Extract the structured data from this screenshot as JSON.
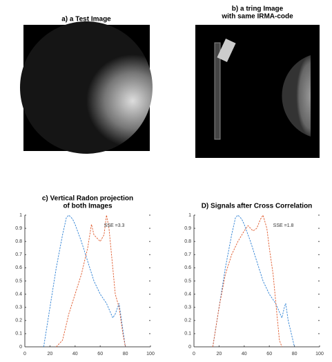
{
  "images": [
    {
      "title": [
        "a) a Test Image"
      ]
    },
    {
      "title": [
        "b) a tring Image",
        "with same IRMA-code"
      ]
    }
  ],
  "chart_data": [
    {
      "type": "line",
      "title": [
        "c) Vertical Radon projection",
        "of both Images"
      ],
      "annotation": "SSE =3.3",
      "annotation_at": [
        63,
        0.92
      ],
      "xlim": [
        0,
        100
      ],
      "xticks": [
        0,
        20,
        40,
        60,
        80,
        100
      ],
      "ylim": [
        0,
        1
      ],
      "yticks": [
        0,
        0.1,
        0.2,
        0.3,
        0.4,
        0.5,
        0.6,
        0.7,
        0.8,
        0.9,
        1
      ],
      "series": [
        {
          "color": "#2a7fd4",
          "x": [
            15,
            20,
            25,
            30,
            33,
            35,
            38,
            40,
            45,
            50,
            55,
            60,
            65,
            70,
            72,
            75,
            77,
            80
          ],
          "values": [
            0,
            0.3,
            0.6,
            0.85,
            0.98,
            1,
            0.97,
            0.93,
            0.8,
            0.65,
            0.5,
            0.4,
            0.33,
            0.22,
            0.25,
            0.33,
            0.2,
            0
          ]
        },
        {
          "color": "#e0582a",
          "x": [
            25,
            30,
            35,
            40,
            45,
            50,
            53,
            55,
            60,
            63,
            65,
            67,
            70,
            72,
            75,
            78,
            80
          ],
          "values": [
            0,
            0.05,
            0.25,
            0.4,
            0.55,
            0.75,
            0.93,
            0.85,
            0.8,
            0.85,
            1,
            0.9,
            0.6,
            0.4,
            0.3,
            0.1,
            0
          ]
        }
      ]
    },
    {
      "type": "line",
      "title": [
        "D) Signals after Cross Correlation"
      ],
      "annotation": "SSE =1.8",
      "annotation_at": [
        63,
        0.92
      ],
      "xlim": [
        0,
        100
      ],
      "xticks": [
        0,
        20,
        40,
        60,
        80,
        100
      ],
      "ylim": [
        0,
        1
      ],
      "yticks": [
        0,
        0.1,
        0.2,
        0.3,
        0.4,
        0.5,
        0.6,
        0.7,
        0.8,
        0.9,
        1
      ],
      "series": [
        {
          "color": "#2a7fd4",
          "x": [
            15,
            20,
            25,
            30,
            33,
            35,
            38,
            40,
            45,
            50,
            55,
            60,
            65,
            70,
            72,
            73,
            75,
            80
          ],
          "values": [
            0,
            0.3,
            0.6,
            0.85,
            0.98,
            1,
            0.97,
            0.93,
            0.8,
            0.65,
            0.5,
            0.4,
            0.33,
            0.22,
            0.3,
            0.33,
            0.2,
            0
          ]
        },
        {
          "color": "#e0582a",
          "x": [
            15,
            20,
            25,
            30,
            35,
            40,
            43,
            47,
            50,
            53,
            55,
            58,
            60,
            63,
            65,
            68,
            70
          ],
          "values": [
            0,
            0.3,
            0.55,
            0.7,
            0.8,
            0.88,
            0.92,
            0.88,
            0.9,
            0.97,
            1,
            0.9,
            0.75,
            0.55,
            0.35,
            0.05,
            0
          ]
        }
      ]
    }
  ]
}
